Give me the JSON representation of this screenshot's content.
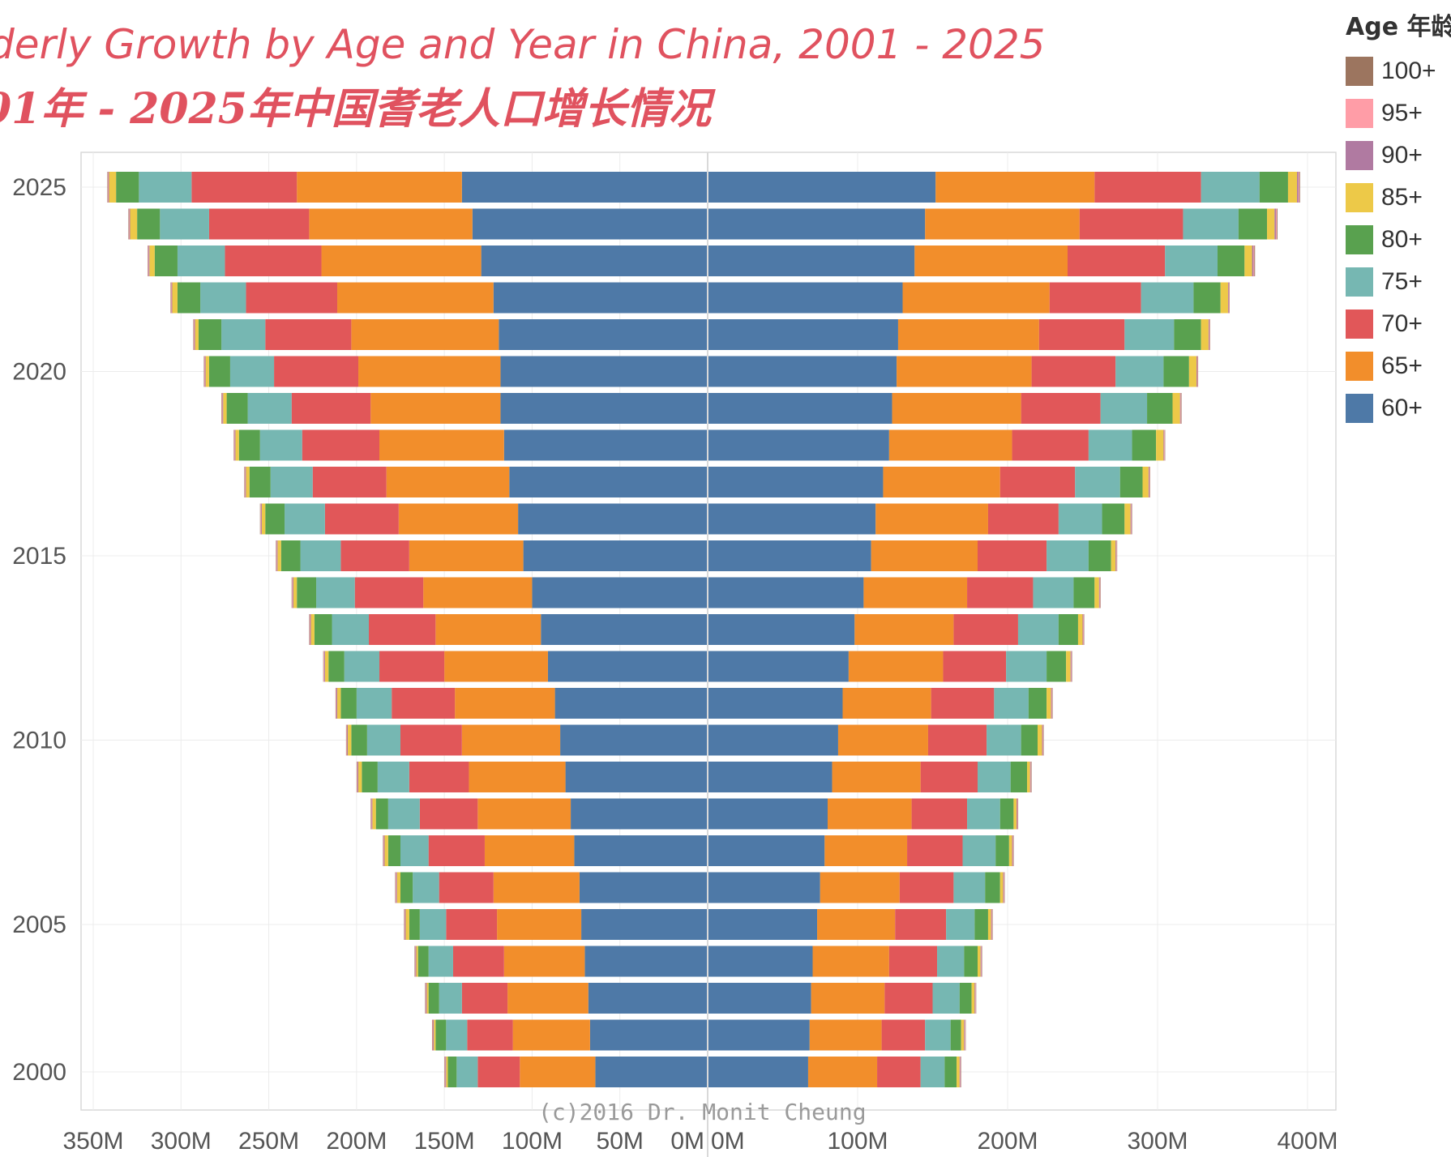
{
  "titles": {
    "english": "derly Growth by Age and Year in China, 2001 - 2025",
    "chinese": "01年 - 2025年中国耆老人口增长情况"
  },
  "legend": {
    "title": "Age 年龄",
    "items": [
      {
        "label": "100+",
        "color": "#9c755f"
      },
      {
        "label": "95+",
        "color": "#ff9da7"
      },
      {
        "label": "90+",
        "color": "#b07aa1"
      },
      {
        "label": "85+",
        "color": "#edc948"
      },
      {
        "label": "80+",
        "color": "#59a14f"
      },
      {
        "label": "75+",
        "color": "#76b7b2"
      },
      {
        "label": "70+",
        "color": "#e15759"
      },
      {
        "label": "65+",
        "color": "#f28e2b"
      },
      {
        "label": "60+",
        "color": "#4e79a7"
      }
    ]
  },
  "watermark": "(c)2016 Dr. Monit Cheung",
  "chart_data": {
    "type": "bar",
    "orientation": "horizontal-stacked-diverging",
    "years": [
      2001,
      2002,
      2003,
      2004,
      2005,
      2006,
      2007,
      2008,
      2009,
      2010,
      2011,
      2012,
      2013,
      2014,
      2015,
      2016,
      2017,
      2018,
      2019,
      2020,
      2021,
      2022,
      2023,
      2024,
      2025
    ],
    "y_tick_labels": [
      "2000",
      "2005",
      "2010",
      "2015",
      "2020",
      "2025"
    ],
    "series_order": [
      "60+",
      "65+",
      "70+",
      "75+",
      "80+",
      "85+",
      "90+",
      "95+",
      "100+"
    ],
    "colors": {
      "60+": "#4e79a7",
      "65+": "#f28e2b",
      "70+": "#e15759",
      "75+": "#76b7b2",
      "80+": "#59a14f",
      "85+": "#edc948",
      "90+": "#b07aa1",
      "95+": "#ff9da7",
      "100+": "#9c755f"
    },
    "left_panel": {
      "x_tick_labels": [
        "350M",
        "300M",
        "250M",
        "200M",
        "150M",
        "100M",
        "50M",
        "0M"
      ],
      "x_tick_values": [
        350,
        300,
        250,
        200,
        150,
        100,
        50,
        0
      ],
      "xlim": [
        0,
        355
      ],
      "values": {
        "60+": [
          64,
          67,
          68,
          70,
          72,
          73,
          76,
          78,
          81,
          84,
          87,
          91,
          95,
          100,
          105,
          108,
          113,
          116,
          118,
          118,
          119,
          122,
          129,
          134,
          140
        ],
        "65+": [
          43,
          44,
          46,
          46,
          48,
          49,
          51,
          53,
          55,
          56,
          57,
          59,
          60,
          62,
          65,
          68,
          70,
          71,
          74,
          81,
          84,
          89,
          91,
          93,
          94
        ],
        "70+": [
          24,
          26,
          26,
          29,
          29,
          31,
          32,
          33,
          34,
          35,
          36,
          37,
          38,
          39,
          39,
          42,
          42,
          44,
          45,
          48,
          49,
          52,
          55,
          57,
          60
        ],
        "75+": [
          12,
          12,
          13,
          14,
          15,
          15,
          16,
          18,
          18,
          19,
          20,
          20,
          21,
          22,
          23,
          23,
          24,
          24,
          25,
          25,
          25,
          26,
          27,
          28,
          30
        ],
        "80+": [
          5,
          6,
          6,
          6,
          6,
          7,
          7,
          7,
          9,
          9,
          9,
          9,
          10,
          11,
          11,
          11,
          12,
          12,
          12,
          12,
          13,
          13,
          13,
          13,
          13
        ],
        "85+": [
          1,
          1,
          1,
          1,
          2,
          2,
          2,
          2,
          2,
          2,
          2,
          2,
          2,
          2,
          2,
          2,
          2,
          2,
          2,
          2,
          2,
          3,
          3,
          4,
          4
        ],
        "90+": [
          0.5,
          0.5,
          0.5,
          0.5,
          0.5,
          0.5,
          0.5,
          0.5,
          0.5,
          0.5,
          0.5,
          0.5,
          0.5,
          0.5,
          0.5,
          0.5,
          0.5,
          0.5,
          0.5,
          0.5,
          0.5,
          0.5,
          0.5,
          0.5,
          0.5
        ],
        "95+": [
          0.3,
          0.3,
          0.3,
          0.3,
          0.3,
          0.3,
          0.3,
          0.3,
          0.3,
          0.3,
          0.3,
          0.3,
          0.3,
          0.3,
          0.3,
          0.3,
          0.3,
          0.3,
          0.3,
          0.3,
          0.3,
          0.3,
          0.3,
          0.3,
          0.3
        ],
        "100+": [
          0.2,
          0.2,
          0.2,
          0.2,
          0.2,
          0.2,
          0.2,
          0.2,
          0.2,
          0.2,
          0.2,
          0.2,
          0.2,
          0.2,
          0.2,
          0.2,
          0.2,
          0.2,
          0.2,
          0.2,
          0.2,
          0.2,
          0.2,
          0.2,
          0.2
        ]
      }
    },
    "right_panel": {
      "x_tick_labels": [
        "0M",
        "100M",
        "200M",
        "300M",
        "400M"
      ],
      "x_tick_values": [
        0,
        100,
        200,
        300,
        400
      ],
      "xlim": [
        0,
        415
      ],
      "values": {
        "60+": [
          67,
          68,
          69,
          70,
          73,
          75,
          78,
          80,
          83,
          87,
          90,
          94,
          98,
          104,
          109,
          112,
          117,
          121,
          123,
          126,
          127,
          130,
          138,
          145,
          152
        ],
        "65+": [
          46,
          48,
          49,
          51,
          52,
          53,
          55,
          56,
          59,
          60,
          59,
          63,
          66,
          69,
          71,
          75,
          78,
          82,
          86,
          90,
          94,
          98,
          102,
          103,
          106
        ],
        "70+": [
          29,
          29,
          32,
          32,
          34,
          36,
          37,
          37,
          38,
          39,
          42,
          42,
          43,
          44,
          46,
          47,
          50,
          51,
          53,
          56,
          57,
          61,
          65,
          69,
          71
        ],
        "75+": [
          16,
          17,
          18,
          18,
          19,
          21,
          22,
          22,
          22,
          23,
          23,
          27,
          27,
          27,
          28,
          29,
          30,
          29,
          31,
          32,
          33,
          35,
          35,
          37,
          39
        ],
        "80+": [
          8,
          7,
          8,
          9,
          9,
          10,
          9,
          9,
          11,
          11,
          12,
          13,
          13,
          14,
          15,
          15,
          15,
          16,
          17,
          17,
          18,
          18,
          18,
          19,
          19
        ],
        "85+": [
          2,
          2,
          2,
          2,
          2,
          2,
          2,
          2,
          2,
          3,
          3,
          3,
          3,
          3,
          3,
          4,
          4,
          5,
          5,
          5,
          5,
          5,
          5,
          5,
          6
        ],
        "90+": [
          0.5,
          0.5,
          0.5,
          0.5,
          0.5,
          0.5,
          0.5,
          0.5,
          0.5,
          0.5,
          0.5,
          0.5,
          0.5,
          0.5,
          0.5,
          0.5,
          0.5,
          0.5,
          0.5,
          0.5,
          0.5,
          0.5,
          1,
          1,
          1
        ],
        "95+": [
          0.3,
          0.3,
          0.3,
          0.3,
          0.3,
          0.3,
          0.3,
          0.3,
          0.3,
          0.3,
          0.3,
          0.3,
          0.3,
          0.3,
          0.3,
          0.3,
          0.3,
          0.3,
          0.3,
          0.3,
          0.3,
          0.3,
          0.5,
          0.5,
          0.5
        ],
        "100+": [
          0.2,
          0.2,
          0.2,
          0.2,
          0.2,
          0.2,
          0.2,
          0.2,
          0.2,
          0.2,
          0.2,
          0.2,
          0.2,
          0.2,
          0.2,
          0.2,
          0.2,
          0.2,
          0.2,
          0.2,
          0.2,
          0.2,
          0.5,
          0.5,
          0.5
        ]
      }
    },
    "grid": true,
    "legend_position": "right"
  }
}
